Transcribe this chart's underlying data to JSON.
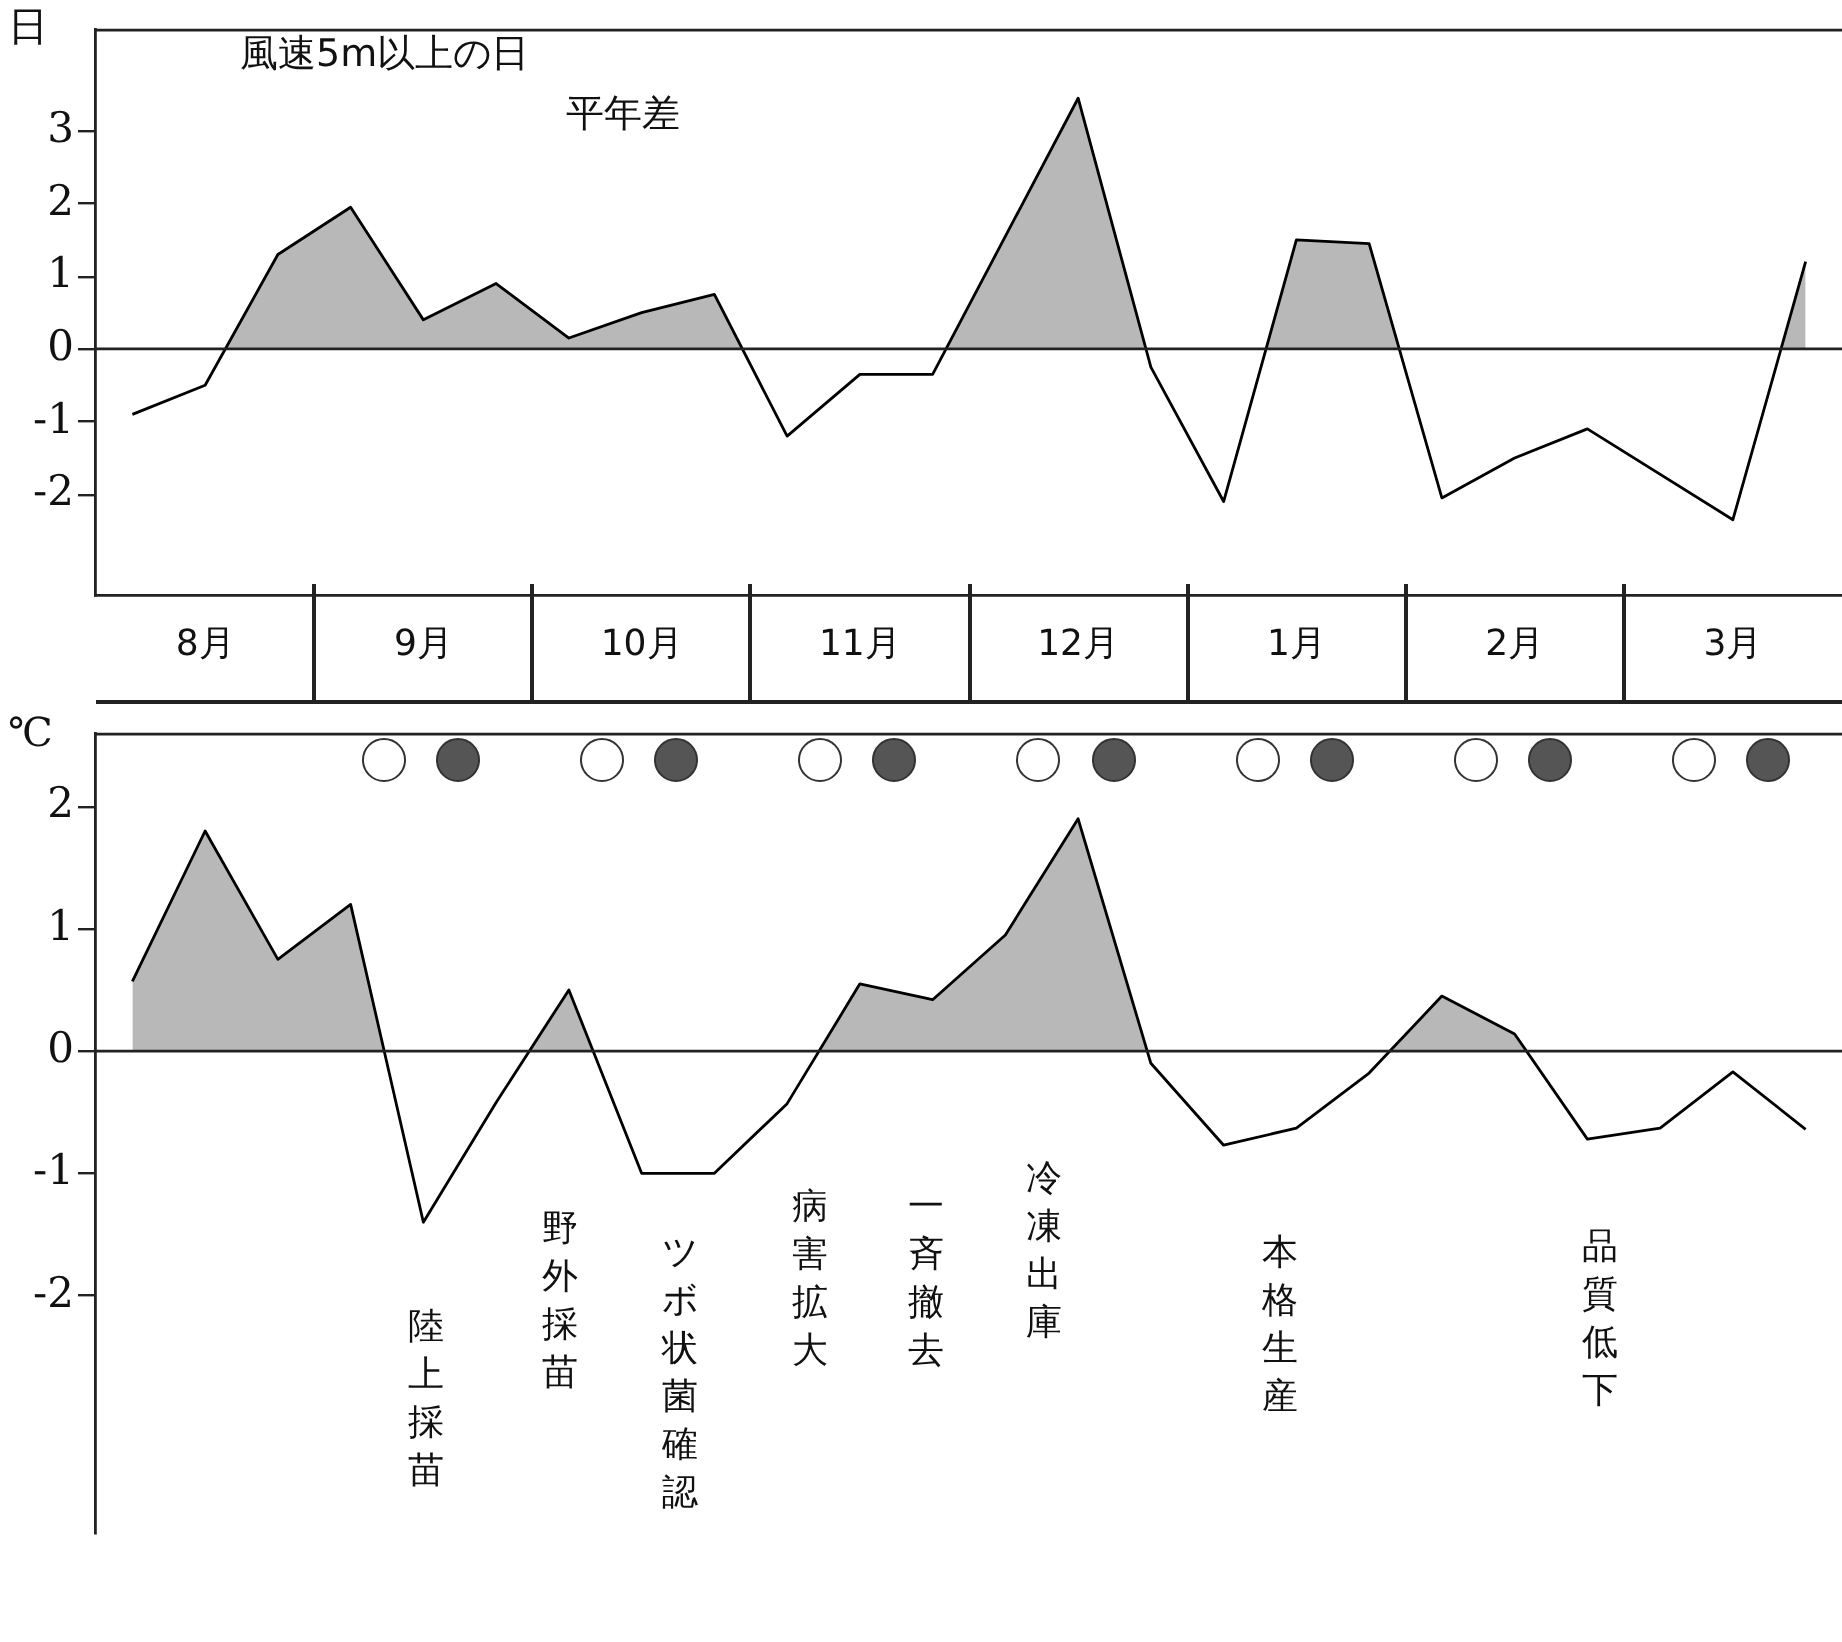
{
  "chart_data": [
    {
      "type": "area",
      "title": "風速5m以上の日",
      "subtitle": "平年差",
      "ylabel": "日",
      "categories": [
        null,
        "8月",
        null,
        null,
        "9月",
        null,
        null,
        "10月",
        null,
        null,
        "11月",
        null,
        null,
        "12月",
        null,
        null,
        "1月",
        null,
        null,
        "2月",
        null,
        null,
        "3月",
        null
      ],
      "ylim": [
        -3.4,
        4.4
      ],
      "yticks": [
        -2,
        -1,
        0,
        1,
        2,
        3
      ],
      "series": [
        {
          "color": "#000000",
          "values": [
            -0.9,
            -0.5,
            1.3,
            1.95,
            0.4,
            0.9,
            0.15,
            0.5,
            0.75,
            -1.2,
            -0.35,
            -0.35,
            null,
            3.45,
            -0.25,
            -2.1,
            1.5,
            1.45,
            -2.05,
            -1.5,
            -1.1,
            null,
            -2.35,
            1.2
          ]
        }
      ],
      "ref_lines": [
        {
          "axis": "y",
          "value": 0
        }
      ],
      "grid": false,
      "legend": false
    },
    {
      "type": "area",
      "ylabel": "℃",
      "categories": [
        null,
        null,
        null,
        null,
        null,
        null,
        null,
        null,
        null,
        null,
        null,
        null,
        null,
        null,
        null,
        null,
        null,
        null,
        null,
        null,
        null,
        null,
        null,
        null
      ],
      "ylim": [
        -3.95,
        2.6
      ],
      "yticks": [
        -2,
        -1,
        0,
        1,
        2
      ],
      "tick_labels": "y",
      "series": [
        {
          "color": "#000000",
          "values": [
            0.57,
            1.8,
            0.75,
            1.2,
            -1.4,
            -0.42,
            0.5,
            -1.0,
            -1.0,
            -0.43,
            0.55,
            0.42,
            0.95,
            1.9,
            -0.1,
            -0.77,
            -0.63,
            -0.18,
            0.45,
            0.14,
            -0.72,
            -0.63,
            -0.17,
            -0.64
          ]
        }
      ],
      "annotations": [
        "陸上採苗",
        "野外採苗",
        "ツボ状菌確認",
        "病害拡大",
        "一斉撤去",
        "冷凍出庫",
        "本格生産",
        "品質低下"
      ],
      "ref_lines": [
        {
          "axis": "y",
          "value": 0
        }
      ],
      "grid": false,
      "legend": false
    }
  ]
}
